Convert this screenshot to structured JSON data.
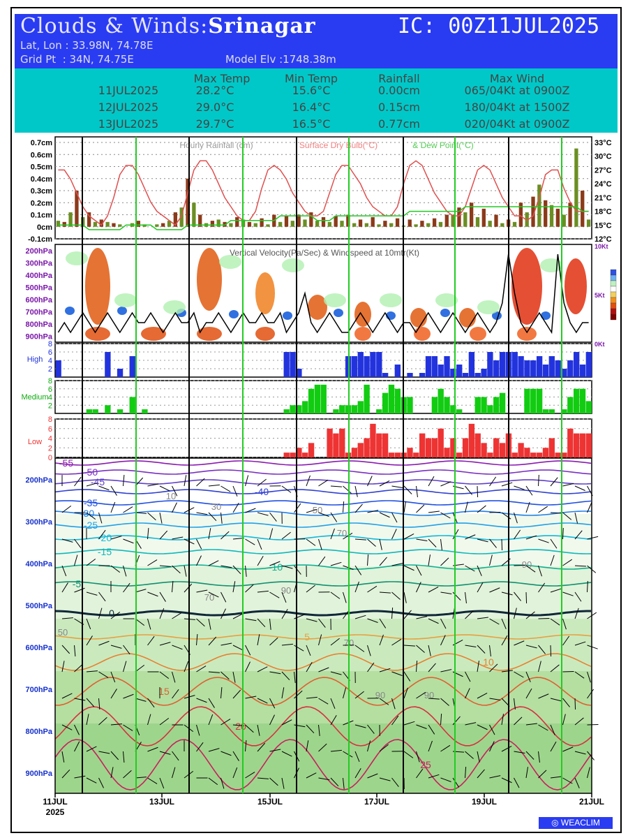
{
  "header": {
    "title_prefix": "Clouds & Winds:",
    "location": "Srinagar",
    "ic": "IC: 00Z11JUL2025",
    "latlon": "Lat, Lon : 33.98N, 74.78E",
    "grid": "Grid Pt  : 34N, 74.75E",
    "elev": "Model Elv :1748.38m"
  },
  "summary": {
    "columns": [
      "Max Temp",
      "Min Temp",
      "Rainfall",
      "Max Wind"
    ],
    "rows": [
      {
        "date": "11JUL2025",
        "max": "28.2°C",
        "min": "15.6°C",
        "rain": "0.00cm",
        "wind": "065/04Kt at 0900Z"
      },
      {
        "date": "12JUL2025",
        "max": "29.0°C",
        "min": "16.4°C",
        "rain": "0.15cm",
        "wind": "180/04Kt at 1500Z"
      },
      {
        "date": "13JUL2025",
        "max": "29.7°C",
        "min": "16.5°C",
        "rain": "0.77cm",
        "wind": "020/04Kt at 0900Z"
      }
    ]
  },
  "colors": {
    "header_bg": "#2a3cf2",
    "summary_bg": "#00c8c8",
    "rain": "#6b8e23",
    "temp": "#e05050",
    "dew": "#22c822",
    "high": "#2233dd",
    "medium": "#11cc11",
    "low": "#ee3333",
    "day_line": "#22cc22"
  },
  "chart_data": [
    {
      "type": "bar",
      "panel": "rainfall_temperature",
      "title": "Hourly Rainfall (cm)",
      "title2": "Surface Dry Bulb(°C)",
      "title3": "& Dew Point(°C)",
      "ylabels_left": [
        "0.7cm",
        "0.6cm",
        "0.5cm",
        "0.4cm",
        "0.3cm",
        "0.2cm",
        "0.1cm",
        "0cm",
        "-0.1cm"
      ],
      "ylabels_right": [
        "33°C",
        "30°C",
        "27°C",
        "24°C",
        "21°C",
        "18°C",
        "15°C",
        "12°C"
      ],
      "ylim_rain": [
        -0.1,
        0.7
      ],
      "ylim_temp": [
        12,
        33
      ],
      "rain_cm": [
        0.05,
        0.04,
        0.12,
        0.3,
        0.08,
        0.12,
        0.04,
        0.06,
        0.04,
        0.03,
        0.02,
        0.0,
        0.03,
        0.05,
        0.02,
        0.0,
        0.02,
        0.03,
        0.05,
        0.12,
        0.16,
        0.4,
        0.2,
        0.1,
        0.03,
        0.05,
        0.06,
        0.04,
        0.03,
        0.08,
        0.06,
        0.04,
        0.03,
        0.07,
        0.02,
        0.1,
        0.04,
        0.09,
        0.05,
        0.1,
        0.06,
        0.12,
        0.05,
        0.08,
        0.04,
        0.09,
        0.05,
        0.1,
        0.03,
        0.06,
        0.03,
        0.08,
        0.02,
        0.05,
        0.03,
        0.07,
        0.01,
        0.06,
        0.02,
        0.05,
        0.03,
        0.07,
        0.04,
        0.1,
        0.1,
        0.16,
        0.12,
        0.2,
        0.08,
        0.15,
        0.05,
        0.1,
        0.03,
        0.06,
        0.04,
        0.2,
        0.12,
        0.25,
        0.35,
        0.22,
        0.18,
        0.15,
        0.1,
        0.2,
        0.65,
        0.3,
        0.06
      ],
      "drybulb_c": [
        27,
        27,
        25,
        22,
        19,
        17,
        16,
        15,
        17,
        21,
        26,
        28,
        28,
        26,
        23,
        20,
        18,
        17,
        16,
        15,
        17,
        22,
        27,
        29,
        29,
        27,
        24,
        21,
        19,
        17,
        16,
        16,
        18,
        23,
        27,
        28,
        27,
        25,
        22,
        20,
        18,
        17,
        17,
        18,
        22,
        26,
        28,
        28,
        26,
        24,
        21,
        19,
        18,
        17,
        17,
        19,
        24,
        28,
        29,
        28,
        25,
        22,
        20,
        18,
        17,
        17,
        19,
        23,
        27,
        28,
        27,
        24,
        21,
        19,
        17,
        17,
        16,
        17,
        21,
        26,
        27,
        27,
        23,
        20,
        18,
        18,
        18
      ],
      "dewpoint_c": [
        15,
        15,
        15,
        15,
        15,
        14,
        14,
        14,
        14,
        14,
        14,
        15,
        15,
        15,
        15,
        15,
        14,
        14,
        14,
        14,
        14,
        15,
        15,
        15,
        15,
        15,
        15,
        15,
        16,
        16,
        16,
        16,
        16,
        16,
        16,
        16,
        17,
        17,
        17,
        17,
        17,
        17,
        16,
        16,
        16,
        17,
        17,
        17,
        17,
        17,
        17,
        17,
        17,
        17,
        17,
        17,
        17,
        18,
        18,
        18,
        18,
        18,
        18,
        18,
        18,
        18,
        19,
        19,
        19,
        19,
        19,
        19,
        19,
        19,
        19,
        19,
        19,
        19,
        19,
        19,
        19,
        19,
        19,
        19,
        19,
        18,
        18
      ]
    },
    {
      "type": "heatmap",
      "panel": "vertical_velocity",
      "title": "Vertical Velocity(Pa/Sec) & Windspeed at 10mtr(Kt)",
      "levels": [
        "200hPa",
        "300hPa",
        "400hPa",
        "500hPa",
        "600hPa",
        "700hPa",
        "800hPa",
        "900hPa"
      ],
      "right_labels": [
        "10Kt",
        "5Kt",
        "0Kt"
      ],
      "windspeed_kt": [
        1,
        2,
        1,
        2,
        3,
        2,
        1,
        2,
        3,
        2,
        1,
        2,
        3,
        2,
        2,
        3,
        2,
        1,
        2,
        3,
        2,
        2,
        3,
        1,
        2,
        2,
        3,
        2,
        1,
        2,
        3,
        2,
        2,
        3,
        2,
        2,
        3,
        1,
        2,
        3,
        5,
        2,
        1,
        2,
        3,
        2,
        1,
        1,
        2,
        3,
        2,
        1,
        2,
        3,
        2,
        1,
        2,
        2,
        1,
        2,
        3,
        2,
        1,
        2,
        3,
        2,
        1,
        2,
        3,
        2,
        1,
        2,
        4,
        9,
        5,
        2,
        1,
        2,
        3,
        2,
        1,
        9,
        4,
        2,
        1,
        2,
        2
      ]
    },
    {
      "type": "bar",
      "panel": "high_cloud",
      "label": "High",
      "yticks": [
        "8",
        "6",
        "4",
        "2"
      ],
      "ylim": [
        0,
        8
      ],
      "values": [
        4,
        0,
        0,
        0,
        0,
        0,
        0,
        0,
        6,
        0,
        2,
        0,
        5,
        0,
        0,
        0,
        0,
        0,
        0,
        0,
        0,
        0,
        0,
        0,
        0,
        0,
        0,
        0,
        0,
        0,
        0,
        0,
        0,
        0,
        0,
        0,
        0,
        6,
        6,
        2,
        0,
        0,
        0,
        0,
        0,
        0,
        0,
        5,
        5,
        6,
        5,
        6,
        6,
        1,
        0,
        3,
        0,
        1,
        0,
        1,
        5,
        5,
        3,
        5,
        2,
        3,
        1,
        6,
        1,
        2,
        6,
        4,
        6,
        6,
        6,
        5,
        4,
        4,
        5,
        3,
        5,
        4,
        2,
        4,
        6,
        3,
        6
      ]
    },
    {
      "type": "bar",
      "panel": "medium_cloud",
      "label": "Medium",
      "yticks": [
        "8",
        "6",
        "4",
        "2"
      ],
      "ylim": [
        0,
        8
      ],
      "values": [
        0,
        0,
        0,
        0,
        0,
        1,
        1,
        0,
        2,
        0,
        1,
        0,
        4,
        0,
        1,
        0,
        0,
        0,
        0,
        0,
        0,
        0,
        0,
        0,
        0,
        0,
        0,
        0,
        0,
        0,
        0,
        0,
        0,
        0,
        0,
        0,
        0,
        1,
        2,
        2,
        3,
        6,
        7,
        7,
        0,
        1,
        2,
        2,
        2,
        3,
        7,
        0,
        1,
        5,
        7,
        6,
        4,
        4,
        0,
        0,
        0,
        4,
        6,
        4,
        2,
        1,
        0,
        0,
        4,
        4,
        2,
        4,
        5,
        0,
        0,
        0,
        6,
        6,
        6,
        1,
        1,
        0,
        1,
        4,
        6,
        6,
        3
      ]
    },
    {
      "type": "bar",
      "panel": "low_cloud",
      "label": "Low",
      "yticks": [
        "8",
        "6",
        "4",
        "2",
        "0"
      ],
      "ylim": [
        0,
        8
      ],
      "values": [
        0,
        0,
        0,
        0,
        0,
        0,
        0,
        0,
        0,
        0,
        0,
        0,
        0,
        0,
        0,
        0,
        0,
        0,
        0,
        0,
        0,
        0,
        0,
        0,
        0,
        0,
        0,
        0,
        0,
        0,
        0,
        0,
        0,
        0,
        0,
        0,
        0,
        1,
        1,
        2,
        1,
        3,
        0,
        0,
        6,
        5,
        6,
        1,
        2,
        3,
        4,
        7,
        5,
        5,
        1,
        1,
        1,
        2,
        1,
        5,
        4,
        4,
        6,
        2,
        4,
        1,
        4,
        7,
        5,
        3,
        1,
        4,
        3,
        5,
        1,
        3,
        2,
        1,
        1,
        2,
        4,
        1,
        1,
        6,
        5,
        5,
        5
      ]
    },
    {
      "type": "heatmap",
      "panel": "cross_section",
      "levels": [
        "200hPa",
        "300hPa",
        "400hPa",
        "500hPa",
        "600hPa",
        "700hPa",
        "800hPa",
        "900hPa"
      ],
      "temperature_contours_c": [
        "-55",
        "-50",
        "-45",
        "-40",
        "-35",
        "-30",
        "-25",
        "-20",
        "-15",
        "-10",
        "-5",
        "0",
        "5",
        "10",
        "15",
        "20",
        "25"
      ],
      "rh_contours": [
        "10",
        "30",
        "50",
        "70",
        "90"
      ]
    }
  ],
  "xaxis": {
    "ticks": [
      "11JUL",
      "13JUL",
      "15JUL",
      "17JUL",
      "19JUL",
      "21JUL"
    ],
    "year": "2025"
  },
  "logo": "WEACLIM"
}
